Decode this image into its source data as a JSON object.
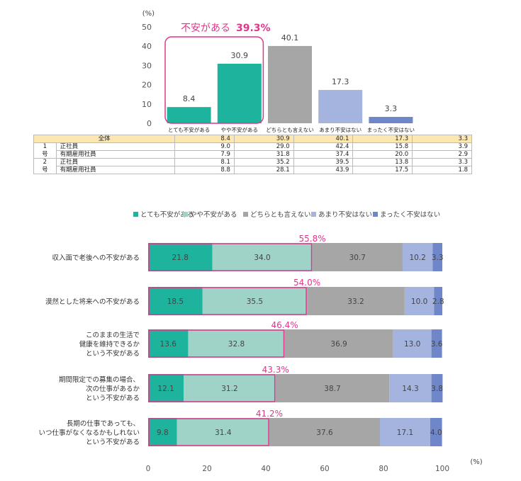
{
  "chart_data": [
    {
      "type": "bar",
      "ylabel": "(%)",
      "ylim": [
        0,
        50
      ],
      "yticks": [
        0,
        10,
        20,
        30,
        40,
        50
      ],
      "categories": [
        "とても不安がある",
        "やや不安がある",
        "どちらとも言えない",
        "あまり不安はない",
        "まったく不安はない"
      ],
      "values": [
        8.4,
        30.9,
        40.1,
        17.3,
        3.3
      ],
      "colors": [
        "#1db39c",
        "#1db39c",
        "#a6a6a6",
        "#a4b4de",
        "#6f86c9"
      ],
      "annotation": {
        "label": "不安がある",
        "value": "39.3%",
        "color": "#e0368a"
      },
      "table": {
        "total_label": "全体",
        "total": [
          "8.4",
          "30.9",
          "40.1",
          "17.3",
          "3.3"
        ],
        "groups": [
          {
            "group": "1",
            "group_sub": "号",
            "rows": [
              {
                "label": "正社員",
                "values": [
                  "9.0",
                  "29.0",
                  "42.4",
                  "15.8",
                  "3.9"
                ]
              },
              {
                "label": "有期雇用社員",
                "values": [
                  "7.9",
                  "31.8",
                  "37.4",
                  "20.0",
                  "2.9"
                ]
              }
            ]
          },
          {
            "group": "2",
            "group_sub": "号",
            "rows": [
              {
                "label": "正社員",
                "values": [
                  "8.1",
                  "35.2",
                  "39.5",
                  "13.8",
                  "3.3"
                ]
              },
              {
                "label": "有期雇用社員",
                "values": [
                  "8.8",
                  "28.1",
                  "43.9",
                  "17.5",
                  "1.8"
                ]
              }
            ]
          }
        ]
      }
    },
    {
      "type": "bar",
      "orientation": "horizontal",
      "stacked": true,
      "xlabel": "(%)",
      "xlim": [
        0,
        100
      ],
      "xticks": [
        0,
        20,
        40,
        60,
        80,
        100
      ],
      "legend_position": "top",
      "series": [
        {
          "name": "とても不安がある",
          "color": "#1db39c",
          "values": [
            21.8,
            18.5,
            13.6,
            12.1,
            9.8
          ]
        },
        {
          "name": "やや不安がある",
          "color": "#9fd3c7",
          "values": [
            34.0,
            35.5,
            32.8,
            31.2,
            31.4
          ]
        },
        {
          "name": "どちらとも言えない",
          "color": "#a6a6a6",
          "values": [
            30.7,
            33.2,
            36.9,
            38.7,
            37.6
          ]
        },
        {
          "name": "あまり不安はない",
          "color": "#a4b4de",
          "values": [
            10.2,
            10.0,
            13.0,
            14.3,
            17.1
          ]
        },
        {
          "name": "まったく不安はない",
          "color": "#6f86c9",
          "values": [
            3.3,
            2.8,
            3.6,
            3.8,
            4.0
          ]
        }
      ],
      "categories": [
        [
          "収入面で老後への不安がある"
        ],
        [
          "漠然とした将来への不安がある"
        ],
        [
          "このままの生活で",
          "健康を維持できるか",
          "という不安がある"
        ],
        [
          "期間限定での募集の場合、",
          "次の仕事があるか",
          "という不安がある"
        ],
        [
          "長期の仕事であっても、",
          "いつ仕事がなくなるかもしれない",
          "という不安がある"
        ]
      ],
      "highlight_totals": [
        "55.8%",
        "54.0%",
        "46.4%",
        "43.3%",
        "41.2%"
      ],
      "highlight_values": [
        55.8,
        54.0,
        46.4,
        43.3,
        41.2
      ],
      "highlight_color": "#e0368a"
    }
  ]
}
